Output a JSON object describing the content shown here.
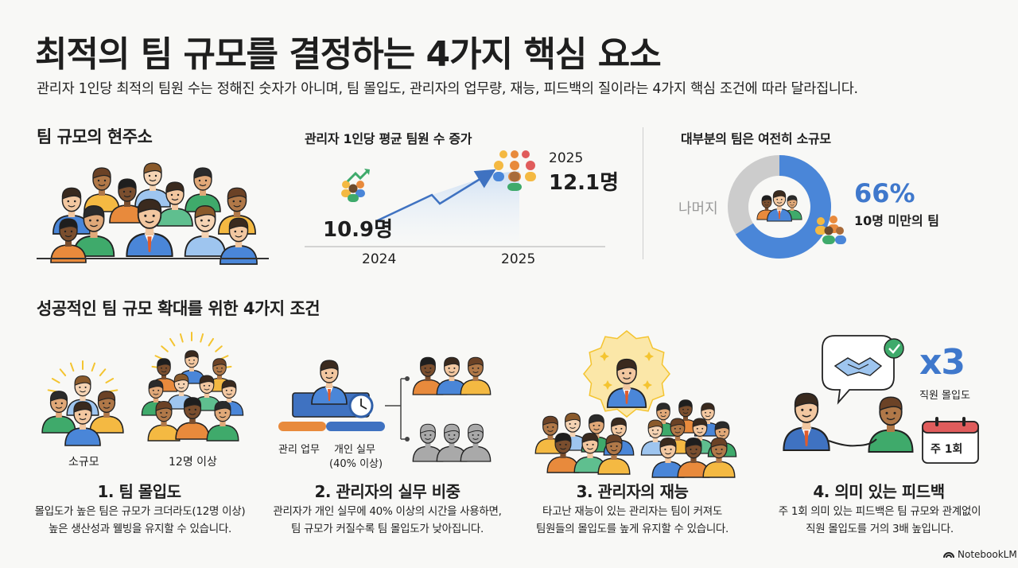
{
  "header": {
    "title": "최적의 팀 규모를 결정하는 4가지 핵심 요소",
    "subtitle": "관리자 1인당 최적의 팀원 수는 정해진 숫자가 아니며, 팀 몰입도, 관리자의 업무량, 재능, 피드백의 질이라는 4가지 핵심 조건에 따라 달라집니다."
  },
  "current": {
    "heading": "팀 규모의 현주소"
  },
  "trend": {
    "heading": "관리자 1인당 평균 팀원 수 증가",
    "start_value": "10.9명",
    "end_year_label": "2025",
    "end_value": "12.1명",
    "x_label_start": "2024",
    "x_label_end": "2025"
  },
  "share": {
    "heading": "대부분의 팀은 여전히 소규모",
    "rest_label": "나머지",
    "percent": "66%",
    "percent_label": "10명 미만의 팀",
    "fraction": 0.66,
    "colors": {
      "main": "#4a86d8",
      "rest": "#cccccc"
    }
  },
  "conditions": {
    "heading": "성공적인 팀 규모 확대를 위한 4가지 조건",
    "items": [
      {
        "title": "1. 팀 몰입도",
        "labels": [
          "소규모",
          "12명 이상"
        ],
        "desc_lines": [
          "몰입도가 높은 팀은 규모가 크더라도(12명 이상)",
          "높은 생산성과 웰빙을 유지할 수 있습니다."
        ]
      },
      {
        "title": "2. 관리자의 실무 비중",
        "labels": [
          "관리 업무",
          "개인 실무",
          "(40% 이상)"
        ],
        "desc_lines": [
          "관리자가 개인 실무에 40% 이상의 시간을 사용하면,",
          "팀 규모가 커질수록 팀 몰입도가 낮아집니다."
        ]
      },
      {
        "title": "3. 관리자의 재능",
        "desc_lines": [
          "타고난 재능이 있는 관리자는 팀이 커져도",
          "팀원들의 몰입도를 높게 유지할 수 있습니다."
        ]
      },
      {
        "title": "4. 의미 있는 피드백",
        "multiplier": "x3",
        "multiplier_label": "직원 몰입도",
        "calendar_label": "주 1회",
        "desc_lines": [
          "주 1회 의미 있는 피드백은 팀 규모와 관계없이",
          "직원 몰입도를 거의 3배 높입니다."
        ]
      }
    ]
  },
  "brand": {
    "name": "NotebookLM"
  },
  "icons": [
    "trend-arrow-icon",
    "people-group-icon",
    "clock-icon",
    "handshake-icon",
    "check-icon",
    "calendar-icon",
    "notebooklm-logo-icon"
  ]
}
